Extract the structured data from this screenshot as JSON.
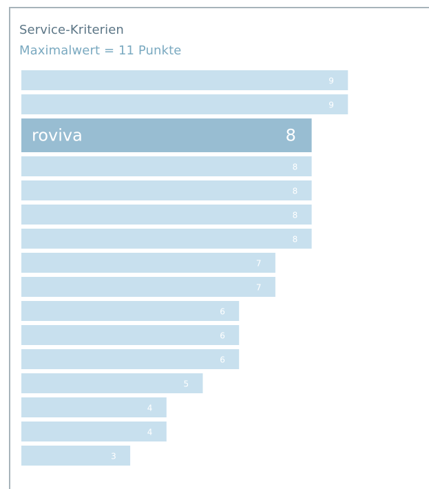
{
  "chart_data": {
    "type": "bar",
    "orientation": "horizontal",
    "title": "Service-Kriterien",
    "subtitle": "Maximalwert = 11 Punkte",
    "xlim": [
      0,
      11
    ],
    "categories": [
      "",
      "",
      "roviva",
      "",
      "",
      "",
      "",
      "",
      "",
      "",
      "",
      "",
      "",
      "",
      "",
      ""
    ],
    "values": [
      9,
      9,
      8,
      8,
      8,
      8,
      8,
      7,
      7,
      6,
      6,
      6,
      5,
      4,
      4,
      3
    ],
    "highlight_index": 2,
    "colors": {
      "bar": "#c8e0ee",
      "highlight": "#98bdd2",
      "title": "#5b7585",
      "subtitle": "#7aa9c0"
    }
  }
}
